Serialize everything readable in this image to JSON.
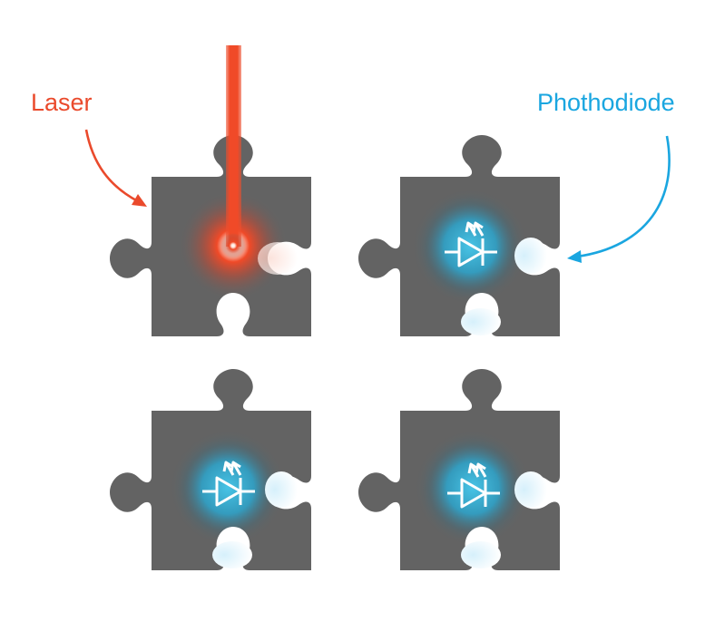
{
  "labels": {
    "laser": "Laser",
    "photodiode": "Phothodiode"
  },
  "colors": {
    "laser": "#ea4a2c",
    "photodiode": "#1aa6e0",
    "piece": "#636363",
    "glow": "#3ab6dc"
  },
  "pieces": [
    {
      "id": "top-left",
      "component": "laser"
    },
    {
      "id": "top-right",
      "component": "photodiode"
    },
    {
      "id": "bottom-left",
      "component": "photodiode"
    },
    {
      "id": "bottom-right",
      "component": "photodiode"
    }
  ]
}
